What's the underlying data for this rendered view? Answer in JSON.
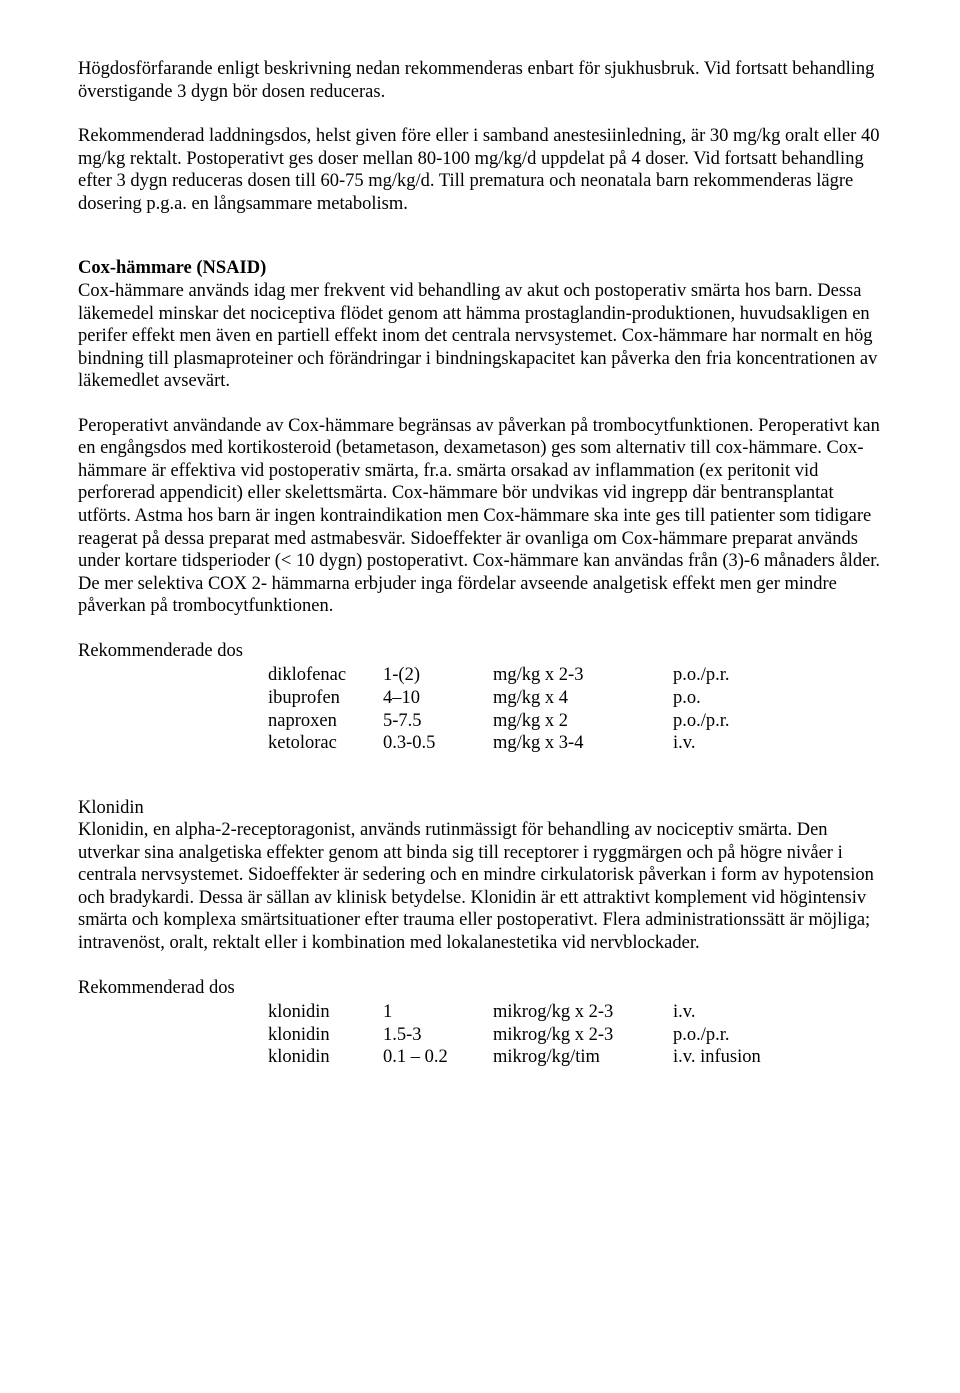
{
  "p_intro": "Högdosförfarande enligt beskrivning nedan rekommenderas enbart för sjukhusbruk. Vid fortsatt behandling överstigande 3 dygn bör dosen reduceras.",
  "p_loading": "Rekommenderad laddningsdos, helst given före eller i samband anestesiinledning, är 30 mg/kg oralt eller 40 mg/kg rektalt. Postoperativt ges doser mellan 80-100 mg/kg/d uppdelat på 4 doser. Vid fortsatt behandling efter 3 dygn reduceras dosen till 60-75 mg/kg/d. Till prematura och neonatala barn rekommenderas lägre dosering p.g.a. en långsammare metabolism.",
  "cox_heading": "Cox-hämmare (NSAID)",
  "cox_body1": "Cox-hämmare används idag mer frekvent vid behandling av akut och postoperativ smärta hos barn. Dessa läkemedel minskar det nociceptiva flödet genom att hämma prostaglandin-produktionen, huvudsakligen en perifer effekt men även en partiell effekt inom det centrala nervsystemet. Cox-hämmare har normalt en hög bindning till plasmaproteiner och förändringar i bindningskapacitet kan påverka den fria koncentrationen av läkemedlet avsevärt.",
  "cox_body2": "Peroperativt användande av Cox-hämmare begränsas av påverkan på trombocytfunktionen. Peroperativt kan en engångsdos med kortikosteroid (betametason, dexametason) ges som alternativ till cox-hämmare. Cox-hämmare är effektiva vid postoperativ smärta, fr.a. smärta orsakad av inflammation (ex peritonit vid perforerad appendicit) eller skelettsmärta. Cox-hämmare bör undvikas vid ingrepp där bentransplantat utförts. Astma hos barn är ingen kontraindikation men Cox-hämmare ska inte ges till patienter som tidigare reagerat på dessa preparat med astmabesvär.  Sidoeffekter är ovanliga om Cox-hämmare preparat används under kortare tidsperioder (< 10 dygn) postoperativt. Cox-hämmare kan användas från (3)-6 månaders ålder. De mer selektiva COX 2- hämmarna erbjuder inga fördelar avseende analgetisk effekt men ger mindre påverkan på trombocytfunktionen.",
  "cox_dose_heading": "Rekommenderade dos",
  "cox_doses": [
    {
      "drug": "diklofenac",
      "dose": "1-(2)",
      "unit": "mg/kg x  2-3",
      "route": "p.o./p.r."
    },
    {
      "drug": "ibuprofen",
      "dose": "4–10",
      "unit": "mg/kg x  4",
      "route": "p.o."
    },
    {
      "drug": "naproxen",
      "dose": "5-7.5",
      "unit": "mg/kg x  2",
      "route": "p.o./p.r."
    },
    {
      "drug": "ketolorac",
      "dose": "0.3-0.5",
      "unit": "mg/kg x  3-4",
      "route": "i.v."
    }
  ],
  "klon_heading": "Klonidin",
  "klon_body": "Klonidin, en alpha-2-receptoragonist, används rutinmässigt för behandling av nociceptiv smärta. Den utverkar sina analgetiska effekter genom att binda sig till receptorer i ryggmärgen och på högre nivåer i centrala nervsystemet. Sidoeffekter är sedering och en mindre cirkulatorisk påverkan i form av hypotension och bradykardi. Dessa är sällan av klinisk betydelse. Klonidin är ett attraktivt komplement vid högintensiv smärta och komplexa smärtsituationer efter trauma eller postoperativt. Flera administrationssätt är möjliga; intravenöst, oralt, rektalt eller i kombination med lokalanestetika vid nervblockader.",
  "klon_dose_heading": "Rekommenderad dos",
  "klon_doses": [
    {
      "drug": "klonidin",
      "dose": "1",
      "unit": "mikrog/kg x 2-3",
      "route": "i.v."
    },
    {
      "drug": "klonidin",
      "dose": "1.5-3",
      "unit": "mikrog/kg x 2-3",
      "route": "p.o./p.r."
    },
    {
      "drug": "klonidin",
      "dose": "0.1 – 0.2",
      "unit": "mikrog/kg/tim",
      "route": "i.v. infusion"
    }
  ]
}
